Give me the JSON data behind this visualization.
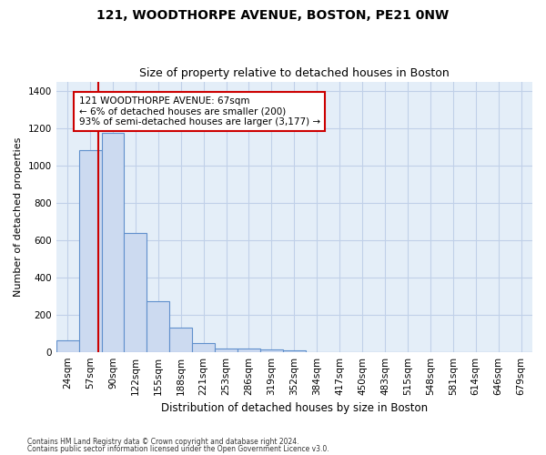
{
  "title1": "121, WOODTHORPE AVENUE, BOSTON, PE21 0NW",
  "title2": "Size of property relative to detached houses in Boston",
  "xlabel": "Distribution of detached houses by size in Boston",
  "ylabel": "Number of detached properties",
  "categories": [
    "24sqm",
    "57sqm",
    "90sqm",
    "122sqm",
    "155sqm",
    "188sqm",
    "221sqm",
    "253sqm",
    "286sqm",
    "319sqm",
    "352sqm",
    "384sqm",
    "417sqm",
    "450sqm",
    "483sqm",
    "515sqm",
    "548sqm",
    "581sqm",
    "614sqm",
    "646sqm",
    "679sqm"
  ],
  "values": [
    60,
    1080,
    1175,
    640,
    270,
    130,
    45,
    18,
    18,
    14,
    8,
    0,
    0,
    0,
    0,
    0,
    0,
    0,
    0,
    0,
    0
  ],
  "bar_color": "#ccdaf0",
  "bar_edge_color": "#6090cc",
  "bar_width": 1.0,
  "ylim": [
    0,
    1450
  ],
  "yticks": [
    0,
    200,
    400,
    600,
    800,
    1000,
    1200,
    1400
  ],
  "vline_x_index": 1.35,
  "vline_color": "#cc0000",
  "annotation_text": "121 WOODTHORPE AVENUE: 67sqm\n← 6% of detached houses are smaller (200)\n93% of semi-detached houses are larger (3,177) →",
  "footnote1": "Contains HM Land Registry data © Crown copyright and database right 2024.",
  "footnote2": "Contains public sector information licensed under the Open Government Licence v3.0.",
  "grid_color": "#c0d0e8",
  "plot_bg_color": "#e4eef8",
  "title1_fontsize": 10,
  "title2_fontsize": 9,
  "xlabel_fontsize": 8.5,
  "ylabel_fontsize": 8,
  "tick_fontsize": 7.5,
  "annot_fontsize": 7.5
}
